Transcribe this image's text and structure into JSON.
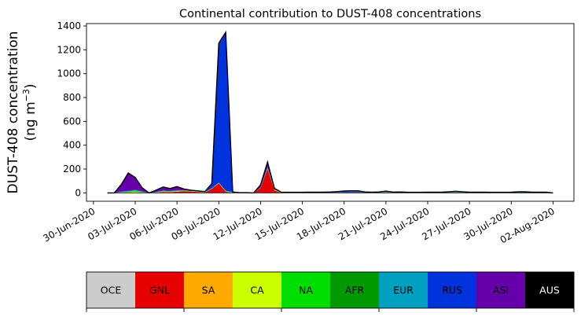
{
  "chart_data": {
    "type": "area",
    "stacked": true,
    "title": "Continental contribution to DUST-408 concentrations",
    "ylabel": "DUST-408 concentration",
    "ylabel_unit_prefix": "(ng m",
    "ylabel_unit_exp": "−3",
    "ylabel_unit_suffix": ")",
    "xlabel": "",
    "ylim": [
      -70,
      1420
    ],
    "yticks": [
      0,
      200,
      400,
      600,
      800,
      1000,
      1200,
      1400
    ],
    "xlim": [
      "2020-06-29T12:00",
      "2020-08-03T12:00"
    ],
    "xticks": [
      "2020-06-30",
      "2020-07-03",
      "2020-07-06",
      "2020-07-09",
      "2020-07-12",
      "2020-07-15",
      "2020-07-18",
      "2020-07-21",
      "2020-07-24",
      "2020-07-27",
      "2020-07-30",
      "2020-08-02"
    ],
    "xtick_labels": [
      "30-Jun-2020",
      "03-Jul-2020",
      "06-Jul-2020",
      "09-Jul-2020",
      "12-Jul-2020",
      "15-Jul-2020",
      "18-Jul-2020",
      "21-Jul-2020",
      "24-Jul-2020",
      "27-Jul-2020",
      "30-Jul-2020",
      "02-Aug-2020"
    ],
    "x": [
      "2020-07-01T00:00",
      "2020-07-01T12:00",
      "2020-07-02T00:00",
      "2020-07-02T12:00",
      "2020-07-03T00:00",
      "2020-07-03T12:00",
      "2020-07-04T00:00",
      "2020-07-04T12:00",
      "2020-07-05T00:00",
      "2020-07-05T12:00",
      "2020-07-06T00:00",
      "2020-07-06T12:00",
      "2020-07-07T00:00",
      "2020-07-07T12:00",
      "2020-07-08T00:00",
      "2020-07-08T12:00",
      "2020-07-09T00:00",
      "2020-07-09T12:00",
      "2020-07-10T00:00",
      "2020-07-10T12:00",
      "2020-07-11T00:00",
      "2020-07-11T12:00",
      "2020-07-12T00:00",
      "2020-07-12T12:00",
      "2020-07-13T00:00",
      "2020-07-13T12:00",
      "2020-07-14T00:00",
      "2020-07-14T12:00",
      "2020-07-15T00:00",
      "2020-07-15T12:00",
      "2020-07-16T00:00",
      "2020-07-16T12:00",
      "2020-07-17T00:00",
      "2020-07-17T12:00",
      "2020-07-18T00:00",
      "2020-07-18T12:00",
      "2020-07-19T00:00",
      "2020-07-19T12:00",
      "2020-07-20T00:00",
      "2020-07-20T12:00",
      "2020-07-21T00:00",
      "2020-07-21T12:00",
      "2020-07-22T00:00",
      "2020-07-22T12:00",
      "2020-07-23T00:00",
      "2020-07-23T12:00",
      "2020-07-24T00:00",
      "2020-07-24T12:00",
      "2020-07-25T00:00",
      "2020-07-25T12:00",
      "2020-07-26T00:00",
      "2020-07-26T12:00",
      "2020-07-27T00:00",
      "2020-07-27T12:00",
      "2020-07-28T00:00",
      "2020-07-28T12:00",
      "2020-07-29T00:00",
      "2020-07-29T12:00",
      "2020-07-30T00:00",
      "2020-07-30T12:00",
      "2020-07-31T00:00",
      "2020-07-31T12:00",
      "2020-08-01T00:00",
      "2020-08-01T12:00",
      "2020-08-02T00:00"
    ],
    "series": [
      {
        "name": "OCE",
        "color": "#cccccc",
        "values": [
          0,
          0,
          0,
          0,
          0,
          0,
          0,
          0,
          0,
          0,
          0,
          0,
          0,
          0,
          0,
          0,
          0,
          0,
          0,
          0,
          0,
          0,
          0,
          0,
          0,
          0,
          0,
          0,
          0,
          0,
          0,
          0,
          0,
          0,
          0,
          0,
          0,
          0,
          0,
          0,
          0,
          0,
          0,
          0,
          0,
          0,
          0,
          0,
          0,
          0,
          0,
          0,
          0,
          0,
          0,
          0,
          0,
          0,
          0,
          0,
          0,
          0,
          0,
          0,
          0
        ]
      },
      {
        "name": "GNL",
        "color": "#e60000",
        "values": [
          0,
          0,
          1,
          2,
          3,
          1,
          0,
          2,
          8,
          6,
          10,
          15,
          12,
          8,
          3,
          35,
          80,
          10,
          0,
          0,
          0,
          0,
          40,
          200,
          20,
          0,
          0,
          0,
          0,
          0,
          0,
          0,
          0,
          0,
          0,
          0,
          0,
          0,
          0,
          1,
          5,
          1,
          0,
          0,
          0,
          0,
          0,
          0,
          0,
          0,
          0,
          0,
          0,
          0,
          0,
          0,
          0,
          0,
          0,
          0,
          0,
          0,
          0,
          0,
          0
        ]
      },
      {
        "name": "SA",
        "color": "#ffaa00",
        "values": [
          0,
          0,
          0,
          0,
          0,
          0,
          0,
          0,
          1,
          1,
          1,
          1,
          1,
          1,
          0,
          0,
          1,
          0,
          0,
          0,
          0,
          0,
          0,
          2,
          1,
          0,
          0,
          0,
          0,
          0,
          0,
          0,
          0,
          0,
          0,
          0,
          0,
          0,
          0,
          0,
          0,
          0,
          0,
          0,
          0,
          0,
          0,
          0,
          0,
          0,
          0,
          0,
          0,
          0,
          0,
          0,
          0,
          0,
          0,
          0,
          0,
          0,
          0,
          0,
          0
        ]
      },
      {
        "name": "CA",
        "color": "#ccff00",
        "values": [
          0,
          0,
          2,
          3,
          6,
          2,
          0,
          1,
          2,
          2,
          3,
          1,
          1,
          1,
          1,
          1,
          1,
          2,
          1,
          0,
          0,
          0,
          1,
          2,
          2,
          1,
          1,
          1,
          1,
          1,
          1,
          1,
          1,
          1,
          1,
          1,
          2,
          1,
          1,
          1,
          1,
          1,
          2,
          2,
          1,
          1,
          1,
          1,
          1,
          2,
          4,
          2,
          1,
          1,
          1,
          1,
          1,
          1,
          1,
          2,
          2,
          1,
          1,
          1,
          0
        ]
      },
      {
        "name": "NA",
        "color": "#00dd00",
        "values": [
          0,
          0,
          4,
          6,
          10,
          4,
          0,
          2,
          3,
          3,
          3,
          2,
          1,
          1,
          1,
          1,
          1,
          3,
          2,
          1,
          1,
          0,
          1,
          3,
          2,
          1,
          1,
          1,
          1,
          1,
          1,
          1,
          1,
          1,
          2,
          2,
          2,
          1,
          1,
          1,
          1,
          1,
          2,
          1,
          1,
          1,
          1,
          1,
          1,
          2,
          3,
          2,
          1,
          1,
          1,
          1,
          1,
          1,
          1,
          2,
          2,
          1,
          1,
          1,
          0
        ]
      },
      {
        "name": "AFR",
        "color": "#009900",
        "values": [
          0,
          0,
          1,
          1,
          2,
          1,
          0,
          1,
          1,
          1,
          1,
          1,
          1,
          1,
          1,
          1,
          1,
          1,
          1,
          0,
          0,
          0,
          1,
          1,
          1,
          0,
          0,
          0,
          0,
          0,
          0,
          0,
          0,
          0,
          0,
          0,
          0,
          0,
          0,
          0,
          0,
          0,
          0,
          0,
          0,
          0,
          0,
          0,
          0,
          0,
          0,
          0,
          0,
          0,
          0,
          0,
          0,
          0,
          0,
          0,
          0,
          0,
          0,
          0,
          0
        ]
      },
      {
        "name": "EUR",
        "color": "#00a0c0",
        "values": [
          0,
          0,
          1,
          2,
          3,
          2,
          0,
          1,
          2,
          2,
          2,
          1,
          1,
          1,
          1,
          1,
          2,
          3,
          2,
          1,
          1,
          0,
          1,
          2,
          2,
          1,
          1,
          1,
          1,
          1,
          1,
          1,
          1,
          1,
          1,
          1,
          1,
          1,
          1,
          1,
          1,
          1,
          1,
          1,
          1,
          1,
          1,
          1,
          1,
          1,
          1,
          1,
          1,
          1,
          1,
          1,
          1,
          1,
          1,
          1,
          1,
          1,
          1,
          1,
          0
        ]
      },
      {
        "name": "RUS",
        "color": "#0033dd",
        "values": [
          0,
          0,
          2,
          3,
          5,
          2,
          0,
          1,
          3,
          2,
          3,
          2,
          1,
          1,
          1,
          30,
          1150,
          1320,
          0,
          0,
          0,
          0,
          3,
          10,
          5,
          1,
          1,
          1,
          1,
          1,
          1,
          1,
          2,
          3,
          6,
          7,
          7,
          2,
          1,
          1,
          3,
          1,
          1,
          1,
          1,
          1,
          1,
          1,
          1,
          2,
          2,
          2,
          1,
          1,
          1,
          1,
          1,
          1,
          1,
          2,
          2,
          1,
          1,
          1,
          0
        ]
      },
      {
        "name": "ASI",
        "color": "#6600aa",
        "values": [
          0,
          0,
          60,
          150,
          100,
          30,
          0,
          15,
          30,
          20,
          30,
          10,
          5,
          3,
          3,
          9,
          20,
          8,
          2,
          0,
          0,
          0,
          20,
          38,
          5,
          1,
          1,
          1,
          1,
          2,
          2,
          2,
          3,
          5,
          6,
          7,
          6,
          3,
          2,
          3,
          4,
          2,
          2,
          1,
          1,
          1,
          2,
          2,
          2,
          3,
          4,
          3,
          2,
          2,
          2,
          1,
          1,
          1,
          2,
          2,
          2,
          2,
          2,
          2,
          0
        ]
      },
      {
        "name": "AUS",
        "color": "#000000",
        "values": [
          0,
          0,
          0,
          0,
          0,
          0,
          0,
          0,
          0,
          0,
          0,
          0,
          0,
          0,
          0,
          0,
          0,
          0,
          0,
          0,
          0,
          0,
          0,
          0,
          0,
          0,
          0,
          0,
          0,
          0,
          0,
          0,
          0,
          0,
          0,
          0,
          0,
          0,
          0,
          0,
          0,
          0,
          0,
          0,
          0,
          0,
          0,
          0,
          0,
          0,
          0,
          0,
          0,
          0,
          0,
          0,
          0,
          0,
          0,
          0,
          0,
          0,
          0,
          0,
          0
        ]
      }
    ],
    "legend": {
      "placement": "bottom",
      "entries": [
        {
          "label": "OCE",
          "color": "#cccccc",
          "text_color": "#000000"
        },
        {
          "label": "GNL",
          "color": "#e60000",
          "text_color": "#000000"
        },
        {
          "label": "SA",
          "color": "#ffaa00",
          "text_color": "#000000"
        },
        {
          "label": "CA",
          "color": "#ccff00",
          "text_color": "#000000"
        },
        {
          "label": "NA",
          "color": "#00dd00",
          "text_color": "#000000"
        },
        {
          "label": "AFR",
          "color": "#009900",
          "text_color": "#000000"
        },
        {
          "label": "EUR",
          "color": "#00a0c0",
          "text_color": "#000000"
        },
        {
          "label": "RUS",
          "color": "#0033dd",
          "text_color": "#000000"
        },
        {
          "label": "ASI",
          "color": "#6600aa",
          "text_color": "#000000"
        },
        {
          "label": "AUS",
          "color": "#000000",
          "text_color": "#ffffff"
        }
      ]
    },
    "grid": false
  }
}
